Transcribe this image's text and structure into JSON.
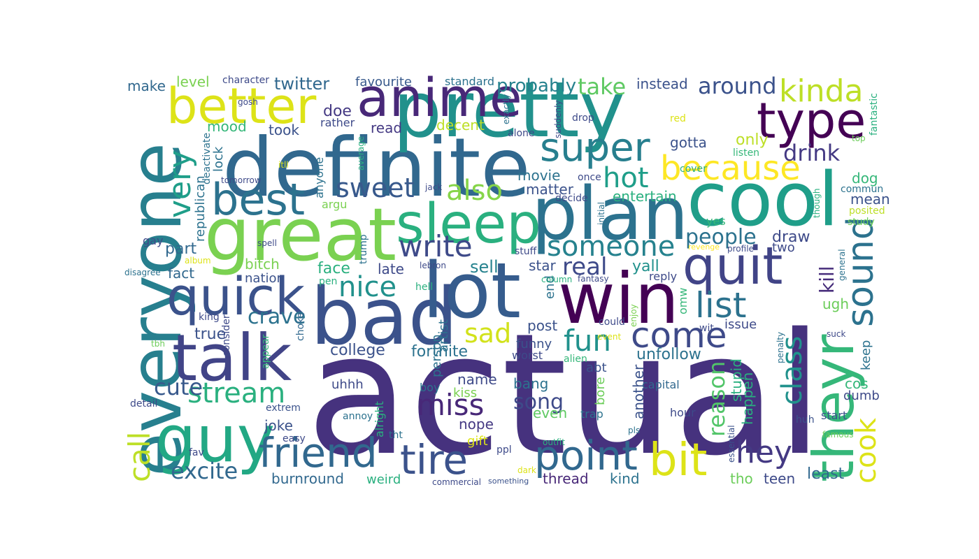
{
  "wordcloud": {
    "words": [
      {
        "text": "actual",
        "color": "#46327e"
      },
      {
        "text": "everyone",
        "color": "#277f8e"
      },
      {
        "text": "definite",
        "color": "#31688e"
      },
      {
        "text": "pretty",
        "color": "#21918c"
      },
      {
        "text": "great",
        "color": "#7ad151"
      },
      {
        "text": "bad",
        "color": "#3b528b"
      },
      {
        "text": "lot",
        "color": "#365c8d"
      },
      {
        "text": "win",
        "color": "#440154"
      },
      {
        "text": "cool",
        "color": "#1f9e89"
      },
      {
        "text": "plan",
        "color": "#2c728e"
      },
      {
        "text": "sleep",
        "color": "#2ab07f"
      },
      {
        "text": "talk",
        "color": "#414487"
      },
      {
        "text": "guy",
        "color": "#22a884"
      },
      {
        "text": "anime",
        "color": "#482878"
      },
      {
        "text": "better",
        "color": "#dde318"
      },
      {
        "text": "quit",
        "color": "#414487"
      },
      {
        "text": "quick",
        "color": "#3b528b"
      },
      {
        "text": "theyr",
        "color": "#35b779"
      },
      {
        "text": "type",
        "color": "#440154"
      },
      {
        "text": "best",
        "color": "#2c728e"
      },
      {
        "text": "super",
        "color": "#277f8e"
      },
      {
        "text": "friend",
        "color": "#31688e"
      },
      {
        "text": "tire",
        "color": "#3b528b"
      },
      {
        "text": "point",
        "color": "#31688e"
      },
      {
        "text": "bit",
        "color": "#dde318"
      },
      {
        "text": "because",
        "color": "#fde725"
      },
      {
        "text": "sound",
        "color": "#2c728e"
      },
      {
        "text": "kinda",
        "color": "#bddf26"
      },
      {
        "text": "very",
        "color": "#1f9e89"
      },
      {
        "text": "write",
        "color": "#3e4a89"
      },
      {
        "text": "list",
        "color": "#2c728e"
      },
      {
        "text": "nice",
        "color": "#21918c"
      },
      {
        "text": "come",
        "color": "#3e4a89"
      },
      {
        "text": "someone",
        "color": "#26828e"
      },
      {
        "text": "miss",
        "color": "#482878"
      },
      {
        "text": "hot",
        "color": "#1f9e89"
      },
      {
        "text": "stream",
        "color": "#2ab07f"
      },
      {
        "text": "sweet",
        "color": "#38598c"
      },
      {
        "text": "also",
        "color": "#86d549"
      },
      {
        "text": "fun",
        "color": "#21918c"
      },
      {
        "text": "call",
        "color": "#bddf26"
      },
      {
        "text": "hey",
        "color": "#443983"
      },
      {
        "text": "cook",
        "color": "#dde318"
      },
      {
        "text": "class",
        "color": "#21918c"
      },
      {
        "text": "sad",
        "color": "#d2e21b"
      },
      {
        "text": "real",
        "color": "#3e4a89"
      },
      {
        "text": "take",
        "color": "#5ec962"
      },
      {
        "text": "around",
        "color": "#3b528b"
      },
      {
        "text": "drink",
        "color": "#443983"
      },
      {
        "text": "people",
        "color": "#2c728e"
      },
      {
        "text": "excite",
        "color": "#31688e"
      },
      {
        "text": "crave",
        "color": "#2c728e"
      },
      {
        "text": "song",
        "color": "#3e4a89"
      },
      {
        "text": "cute",
        "color": "#38598c"
      },
      {
        "text": "reason",
        "color": "#52c569"
      },
      {
        "text": "kill",
        "color": "#472d7b"
      },
      {
        "text": "probably",
        "color": "#26828e"
      },
      {
        "text": "twitter",
        "color": "#31688e"
      },
      {
        "text": "instead",
        "color": "#3b528b"
      },
      {
        "text": "favourite",
        "color": "#38598c"
      },
      {
        "text": "standard",
        "color": "#2c728e"
      },
      {
        "text": "make",
        "color": "#31688e"
      },
      {
        "text": "level",
        "color": "#7ad151"
      },
      {
        "text": "character",
        "color": "#3e4a89"
      },
      {
        "text": "doe",
        "color": "#443983"
      },
      {
        "text": "rather",
        "color": "#3e4a89"
      },
      {
        "text": "read",
        "color": "#443983"
      },
      {
        "text": "decent",
        "color": "#bddf26"
      },
      {
        "text": "mood",
        "color": "#35b779"
      },
      {
        "text": "took",
        "color": "#3b528b"
      },
      {
        "text": "gotta",
        "color": "#3b528b"
      },
      {
        "text": "only",
        "color": "#bddf26"
      },
      {
        "text": "movie",
        "color": "#2c728e"
      },
      {
        "text": "matter",
        "color": "#3b528b"
      },
      {
        "text": "entertain",
        "color": "#2ab07f"
      },
      {
        "text": "dog",
        "color": "#35b779"
      },
      {
        "text": "mean",
        "color": "#3b528b"
      },
      {
        "text": "draw",
        "color": "#3e4a89"
      },
      {
        "text": "two",
        "color": "#3e4a89"
      },
      {
        "text": "part",
        "color": "#31688e"
      },
      {
        "text": "fact",
        "color": "#31688e"
      },
      {
        "text": "bitch",
        "color": "#7ad151"
      },
      {
        "text": "nation",
        "color": "#3b528b"
      },
      {
        "text": "face",
        "color": "#2ab07f"
      },
      {
        "text": "late",
        "color": "#3e4a89"
      },
      {
        "text": "sell",
        "color": "#26828e"
      },
      {
        "text": "star",
        "color": "#3b528b"
      },
      {
        "text": "yall",
        "color": "#21918c"
      },
      {
        "text": "post",
        "color": "#3b528b"
      },
      {
        "text": "funny",
        "color": "#3b528b"
      },
      {
        "text": "fortnite",
        "color": "#2c728e"
      },
      {
        "text": "college",
        "color": "#3b528b"
      },
      {
        "text": "true",
        "color": "#3b528b"
      },
      {
        "text": "unfollow",
        "color": "#2c728e"
      },
      {
        "text": "issue",
        "color": "#3e4a89"
      },
      {
        "text": "ugh",
        "color": "#6ccd5a"
      },
      {
        "text": "keep",
        "color": "#2c728e"
      },
      {
        "text": "name",
        "color": "#3e4a89"
      },
      {
        "text": "bang",
        "color": "#2c728e"
      },
      {
        "text": "uhhh",
        "color": "#3e4a89"
      },
      {
        "text": "joke",
        "color": "#3b528b"
      },
      {
        "text": "nope",
        "color": "#443983"
      },
      {
        "text": "even",
        "color": "#5ec962"
      },
      {
        "text": "burnround",
        "color": "#31688e"
      },
      {
        "text": "weird",
        "color": "#2ab07f"
      },
      {
        "text": "thread",
        "color": "#482878"
      },
      {
        "text": "kind",
        "color": "#2c728e"
      },
      {
        "text": "least",
        "color": "#31688e"
      },
      {
        "text": "teen",
        "color": "#3e4a89"
      },
      {
        "text": "tho",
        "color": "#6ccd5a"
      },
      {
        "text": "happen",
        "color": "#2ab07f"
      },
      {
        "text": "stupid",
        "color": "#2ab07f"
      },
      {
        "text": "dumb",
        "color": "#3e4a89"
      },
      {
        "text": "cos",
        "color": "#35b779"
      },
      {
        "text": "another",
        "color": "#3b528b"
      },
      {
        "text": "abt",
        "color": "#3b528b"
      },
      {
        "text": "capital",
        "color": "#31688e"
      },
      {
        "text": "hour",
        "color": "#3e4a89"
      },
      {
        "text": "start",
        "color": "#3b528b"
      },
      {
        "text": "huh",
        "color": "#3b528b"
      },
      {
        "text": "worst",
        "color": "#3e4a89"
      },
      {
        "text": "alien",
        "color": "#35b779"
      },
      {
        "text": "trap",
        "color": "#2c728e"
      },
      {
        "text": "bore",
        "color": "#6ccd5a"
      },
      {
        "text": "gift",
        "color": "#dde318"
      },
      {
        "text": "kiss",
        "color": "#7ad151"
      },
      {
        "text": "boy",
        "color": "#2c728e"
      },
      {
        "text": "could",
        "color": "#3e4a89"
      },
      {
        "text": "person",
        "color": "#2c728e"
      },
      {
        "text": "artist",
        "color": "#2c728e"
      },
      {
        "text": "end",
        "color": "#2c728e"
      },
      {
        "text": "omw",
        "color": "#35b779"
      },
      {
        "text": "wit",
        "color": "#3e4a89"
      },
      {
        "text": "reply",
        "color": "#3e4a89"
      },
      {
        "text": "column",
        "color": "#2ab07f"
      },
      {
        "text": "fantasy",
        "color": "#3e4a89"
      },
      {
        "text": "enjoy",
        "color": "#7ad151"
      },
      {
        "text": "event",
        "color": "#dde318"
      },
      {
        "text": "choke",
        "color": "#31688e"
      },
      {
        "text": "king",
        "color": "#3e4a89"
      },
      {
        "text": "tbh",
        "color": "#6ccd5a"
      },
      {
        "text": "consider",
        "color": "#3e4a89"
      },
      {
        "text": "appear",
        "color": "#35b779"
      },
      {
        "text": "annoy",
        "color": "#2c728e"
      },
      {
        "text": "detail",
        "color": "#3e4a89"
      },
      {
        "text": "extrem",
        "color": "#3b528b"
      },
      {
        "text": "easy",
        "color": "#3e4a89"
      },
      {
        "text": "tht",
        "color": "#2c728e"
      },
      {
        "text": "alright",
        "color": "#2ab07f"
      },
      {
        "text": "ppl",
        "color": "#3e4a89"
      },
      {
        "text": "dark",
        "color": "#dde318"
      },
      {
        "text": "outfit",
        "color": "#2ab07f"
      },
      {
        "text": "commercial",
        "color": "#3e4a89"
      },
      {
        "text": "something",
        "color": "#3b528b"
      },
      {
        "text": "fav",
        "color": "#3e4a89"
      },
      {
        "text": "pls",
        "color": "#2c728e"
      },
      {
        "text": "famous",
        "color": "#6ccd5a"
      },
      {
        "text": "essential",
        "color": "#3b528b"
      },
      {
        "text": "penalty",
        "color": "#2c728e"
      },
      {
        "text": "suck",
        "color": "#3e4a89"
      },
      {
        "text": "gay",
        "color": "#3e4a89"
      },
      {
        "text": "album",
        "color": "#dde318"
      },
      {
        "text": "disagree",
        "color": "#2c728e"
      },
      {
        "text": "spell",
        "color": "#3e4a89"
      },
      {
        "text": "pen",
        "color": "#2ab07f"
      },
      {
        "text": "lebron",
        "color": "#3e4a89"
      },
      {
        "text": "stuff",
        "color": "#3e4a89"
      },
      {
        "text": "trump",
        "color": "#2c728e"
      },
      {
        "text": "hell",
        "color": "#2ab07f"
      },
      {
        "text": "argu",
        "color": "#7ad151"
      },
      {
        "text": "anyone",
        "color": "#2c728e"
      },
      {
        "text": "jack",
        "color": "#3e4a89"
      },
      {
        "text": "decide",
        "color": "#3e4a89"
      },
      {
        "text": "initial",
        "color": "#2c728e"
      },
      {
        "text": "profile",
        "color": "#3e4a89"
      },
      {
        "text": "revenge",
        "color": "#fde725"
      },
      {
        "text": "general",
        "color": "#2c728e"
      },
      {
        "text": "yes",
        "color": "#35b779"
      },
      {
        "text": "though",
        "color": "#2ab07f"
      },
      {
        "text": "commun",
        "color": "#2c728e"
      },
      {
        "text": "posited",
        "color": "#bddf26"
      },
      {
        "text": "study",
        "color": "#6ccd5a"
      },
      {
        "text": "republican",
        "color": "#2c728e"
      },
      {
        "text": "lock",
        "color": "#2c728e"
      },
      {
        "text": "deactivate",
        "color": "#2c728e"
      },
      {
        "text": "tomorrow",
        "color": "#3e4a89"
      },
      {
        "text": "itll",
        "color": "#dde318"
      },
      {
        "text": "gosh",
        "color": "#3e4a89"
      },
      {
        "text": "average",
        "color": "#2ab07f"
      },
      {
        "text": "alone",
        "color": "#3e4a89"
      },
      {
        "text": "exactly",
        "color": "#2c728e"
      },
      {
        "text": "suddenly",
        "color": "#3e4a89"
      },
      {
        "text": "drop",
        "color": "#3e4a89"
      },
      {
        "text": "once",
        "color": "#3e4a89"
      },
      {
        "text": "cover",
        "color": "#2ab07f"
      },
      {
        "text": "listen",
        "color": "#35b779"
      },
      {
        "text": "red",
        "color": "#dde318"
      },
      {
        "text": "top",
        "color": "#6ccd5a"
      },
      {
        "text": "fantastic",
        "color": "#2ab07f"
      }
    ]
  }
}
